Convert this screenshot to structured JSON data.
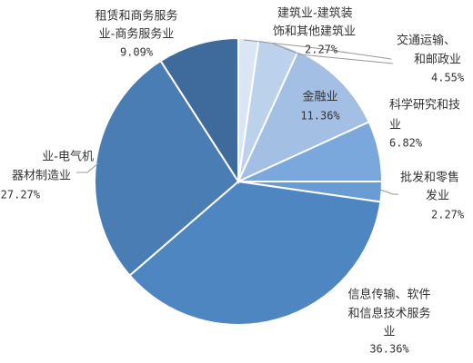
{
  "chart_data": {
    "type": "pie",
    "categories": [
      [
        "建筑业-建筑装",
        "饰和其他建筑业"
      ],
      [
        "交通运输、",
        "和邮政业"
      ],
      [
        "金融业"
      ],
      [
        "科学研究和技",
        "业"
      ],
      [
        "批发和零售",
        "发业"
      ],
      [
        "信息传输、软件",
        "和信息技术服务",
        "业"
      ],
      [
        "业-电气机",
        "器材制造业"
      ],
      [
        "租赁和商务服务",
        "业-商务服务业"
      ]
    ],
    "values": [
      2.27,
      4.55,
      11.36,
      6.82,
      2.27,
      36.36,
      27.27,
      9.09
    ],
    "value_labels": [
      "2.27%",
      "4.55%",
      "11.36%",
      "6.82%",
      "2.27%",
      "36.36%",
      "27.27%",
      "9.09%"
    ],
    "colors": [
      "#dbe6f4",
      "#bcd1ec",
      "#a3bfe3",
      "#7aa8dc",
      "#6a9cd4",
      "#4e86c2",
      "#4a7db3",
      "#3e6b9b"
    ]
  }
}
